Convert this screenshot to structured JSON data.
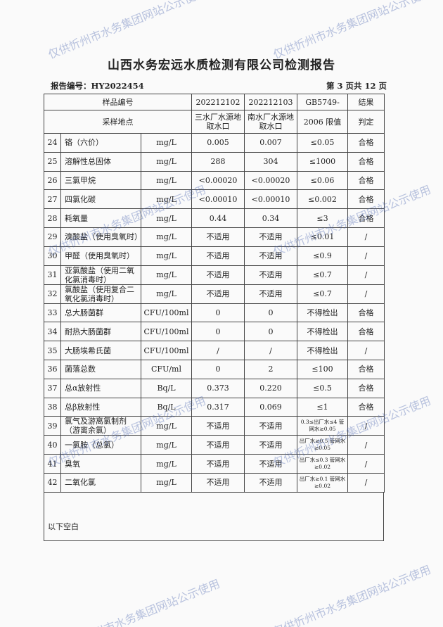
{
  "title": "山西水务宏远水质检测有限公司检测报告",
  "report_no": "报告编号：HY2022454",
  "page_info": "第 3 页共 12 页",
  "header": {
    "sample_no_label": "样品编号",
    "sample1": "202212102",
    "sample2": "202212103",
    "std_top": "GB5749-",
    "result_top": "结果",
    "site_label": "采样地点",
    "site1": "三水厂水源地取水口",
    "site2": "南水厂水源地取水口",
    "std_bottom": "2006 限值",
    "result_bottom": "判定"
  },
  "rows": [
    {
      "no": "24",
      "item": "铬（六价）",
      "unit": "mg/L",
      "v1": "0.005",
      "v2": "0.007",
      "limit": "≤0.05",
      "result": "合格"
    },
    {
      "no": "25",
      "item": "溶解性总固体",
      "unit": "mg/L",
      "v1": "288",
      "v2": "304",
      "limit": "≤1000",
      "result": "合格"
    },
    {
      "no": "26",
      "item": "三氯甲烷",
      "unit": "mg/L",
      "v1": "<0.00020",
      "v2": "<0.00020",
      "limit": "≤0.06",
      "result": "合格"
    },
    {
      "no": "27",
      "item": "四氯化碳",
      "unit": "mg/L",
      "v1": "<0.00010",
      "v2": "<0.00010",
      "limit": "≤0.002",
      "result": "合格"
    },
    {
      "no": "28",
      "item": "耗氧量",
      "unit": "mg/L",
      "v1": "0.44",
      "v2": "0.34",
      "limit": "≤3",
      "result": "合格"
    },
    {
      "no": "29",
      "item": "溴酸盐（使用臭氧时）",
      "unit": "mg/L",
      "v1": "不适用",
      "v2": "不适用",
      "limit": "≤0.01",
      "result": "/"
    },
    {
      "no": "30",
      "item": "甲醛（使用臭氧时）",
      "unit": "mg/L",
      "v1": "不适用",
      "v2": "不适用",
      "limit": "≤0.9",
      "result": "/"
    },
    {
      "no": "31",
      "item": "亚氯酸盐（使用二氧化氯消毒时）",
      "unit": "mg/L",
      "v1": "不适用",
      "v2": "不适用",
      "limit": "≤0.7",
      "result": "/"
    },
    {
      "no": "32",
      "item": "氯酸盐（使用复合二氧化氯消毒时）",
      "unit": "mg/L",
      "v1": "不适用",
      "v2": "不适用",
      "limit": "≤0.7",
      "result": "/"
    },
    {
      "no": "33",
      "item": "总大肠菌群",
      "unit": "CFU/100ml",
      "v1": "0",
      "v2": "0",
      "limit": "不得检出",
      "result": "合格"
    },
    {
      "no": "34",
      "item": "耐热大肠菌群",
      "unit": "CFU/100ml",
      "v1": "0",
      "v2": "0",
      "limit": "不得检出",
      "result": "合格"
    },
    {
      "no": "35",
      "item": "大肠埃希氏菌",
      "unit": "CFU/100ml",
      "v1": "/",
      "v2": "/",
      "limit": "不得检出",
      "result": "/"
    },
    {
      "no": "36",
      "item": "菌落总数",
      "unit": "CFU/ml",
      "v1": "0",
      "v2": "2",
      "limit": "≤100",
      "result": "合格"
    },
    {
      "no": "37",
      "item": "总α放射性",
      "unit": "Bq/L",
      "v1": "0.373",
      "v2": "0.220",
      "limit": "≤0.5",
      "result": "合格"
    },
    {
      "no": "38",
      "item": "总β放射性",
      "unit": "Bq/L",
      "v1": "0.317",
      "v2": "0.069",
      "limit": "≤1",
      "result": "合格"
    },
    {
      "no": "39",
      "item": "氯气及游离氯制剂（游离余氯）",
      "unit": "mg/L",
      "v1": "不适用",
      "v2": "不适用",
      "limit": "0.3≤出厂水≤4 管网水≥0.05",
      "result": "/",
      "small": true
    },
    {
      "no": "40",
      "item": "一氯胺（总氯）",
      "unit": "mg/L",
      "v1": "不适用",
      "v2": "不适用",
      "limit": "出厂水≥0.5 管网水≥0.05",
      "result": "/",
      "small": true
    },
    {
      "no": "41",
      "item": "臭氧",
      "unit": "mg/L",
      "v1": "不适用",
      "v2": "不适用",
      "limit": "出厂水≤0.3 管网水≥0.02",
      "result": "/",
      "small": true
    },
    {
      "no": "42",
      "item": "二氧化氯",
      "unit": "mg/L",
      "v1": "不适用",
      "v2": "不适用",
      "limit": "出厂水≥0.1 管网水≥0.02",
      "result": "/",
      "small": true
    }
  ],
  "remark": "以下空白",
  "watermark": "仅供忻州市水务集团网站公示使用"
}
